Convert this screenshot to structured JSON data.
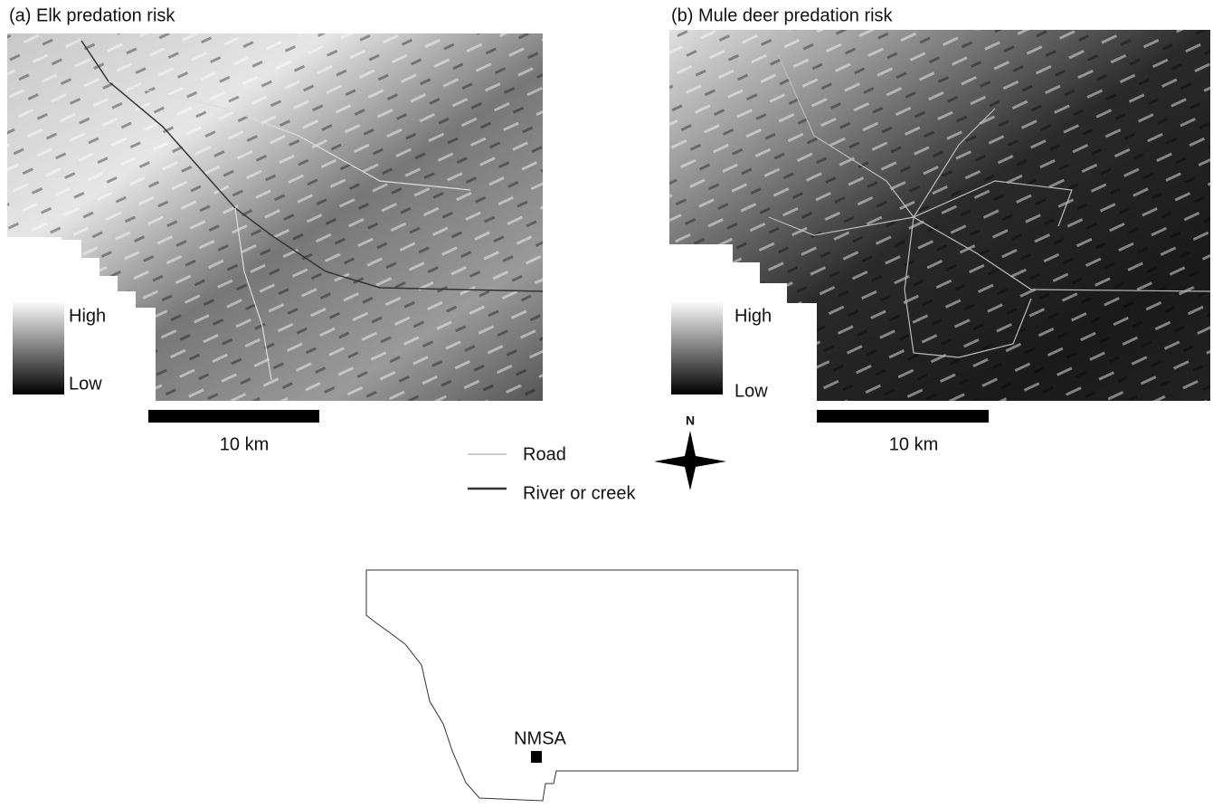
{
  "panels": [
    {
      "title": "(a) Elk predation risk",
      "legend_high": "High",
      "legend_low": "Low",
      "scale_label": "10 km"
    },
    {
      "title": "(b) Mule deer predation risk",
      "legend_high": "High",
      "legend_low": "Low",
      "scale_label": "10 km"
    }
  ],
  "legend": {
    "road": "Road",
    "river": "River or creek"
  },
  "compass": "N",
  "inset": {
    "label": "NMSA"
  }
}
